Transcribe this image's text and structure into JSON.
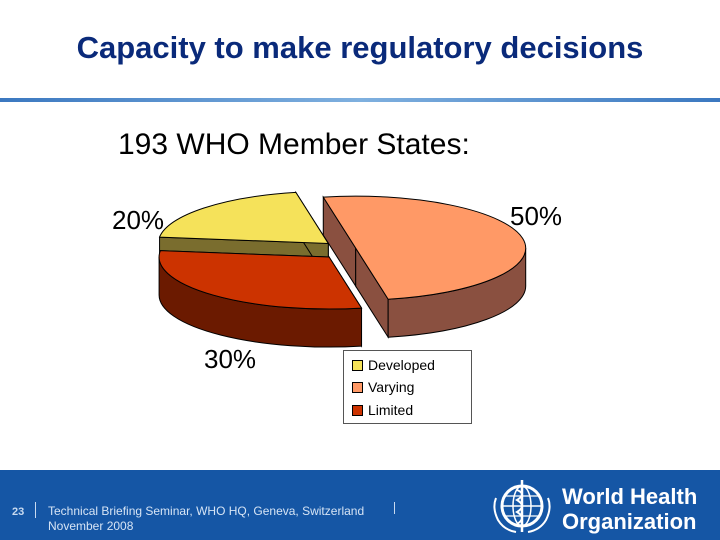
{
  "slide": {
    "title": "Capacity to make regulatory decisions",
    "subtitle": "193 WHO Member States:"
  },
  "chart_data": {
    "type": "pie",
    "style": "3d-exploded",
    "categories": [
      "Developed",
      "Varying",
      "Limited"
    ],
    "values": [
      20,
      50,
      30
    ],
    "data_labels": [
      "20%",
      "50%",
      "30%"
    ],
    "colors": {
      "Developed": "#f5e25a",
      "Varying": "#ff9966",
      "Limited": "#cc3300"
    },
    "side_colors": {
      "Developed": "#7a6d2e",
      "Varying": "#8a5040",
      "Limited": "#6b1a00"
    },
    "legend": {
      "placement": "bottom-right",
      "entries": [
        "Developed",
        "Varying",
        "Limited"
      ]
    }
  },
  "footer": {
    "page_number": "23",
    "line1": "Technical Briefing Seminar, WHO HQ, Geneva, Switzerland",
    "line2": "November 2008",
    "org_line1": "World Health",
    "org_line2": "Organization"
  },
  "icons": {
    "logo": "who-emblem-icon"
  }
}
